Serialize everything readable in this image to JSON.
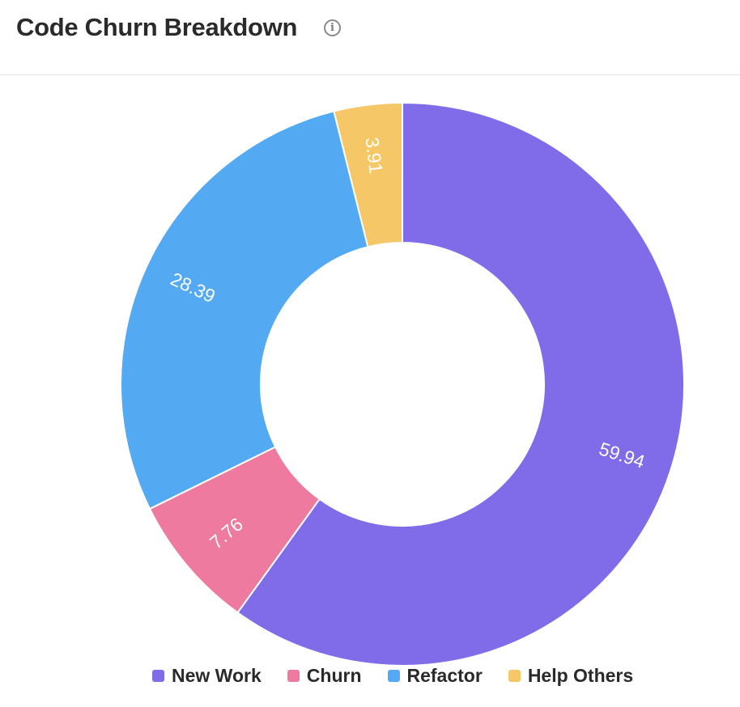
{
  "header": {
    "title": "Code Churn Breakdown",
    "info_icon": "info-icon"
  },
  "chart_data": {
    "type": "pie",
    "variant": "donut",
    "title": "Code Churn Breakdown",
    "categories": [
      "New Work",
      "Churn",
      "Refactor",
      "Help Others"
    ],
    "values": [
      59.94,
      7.76,
      28.39,
      3.91
    ],
    "colors": [
      "#806CE9",
      "#EE7A9F",
      "#53AAF2",
      "#F5C766"
    ],
    "data_labels": [
      "59.94",
      "7.76",
      "28.39",
      "3.91"
    ],
    "legend_position": "bottom"
  }
}
